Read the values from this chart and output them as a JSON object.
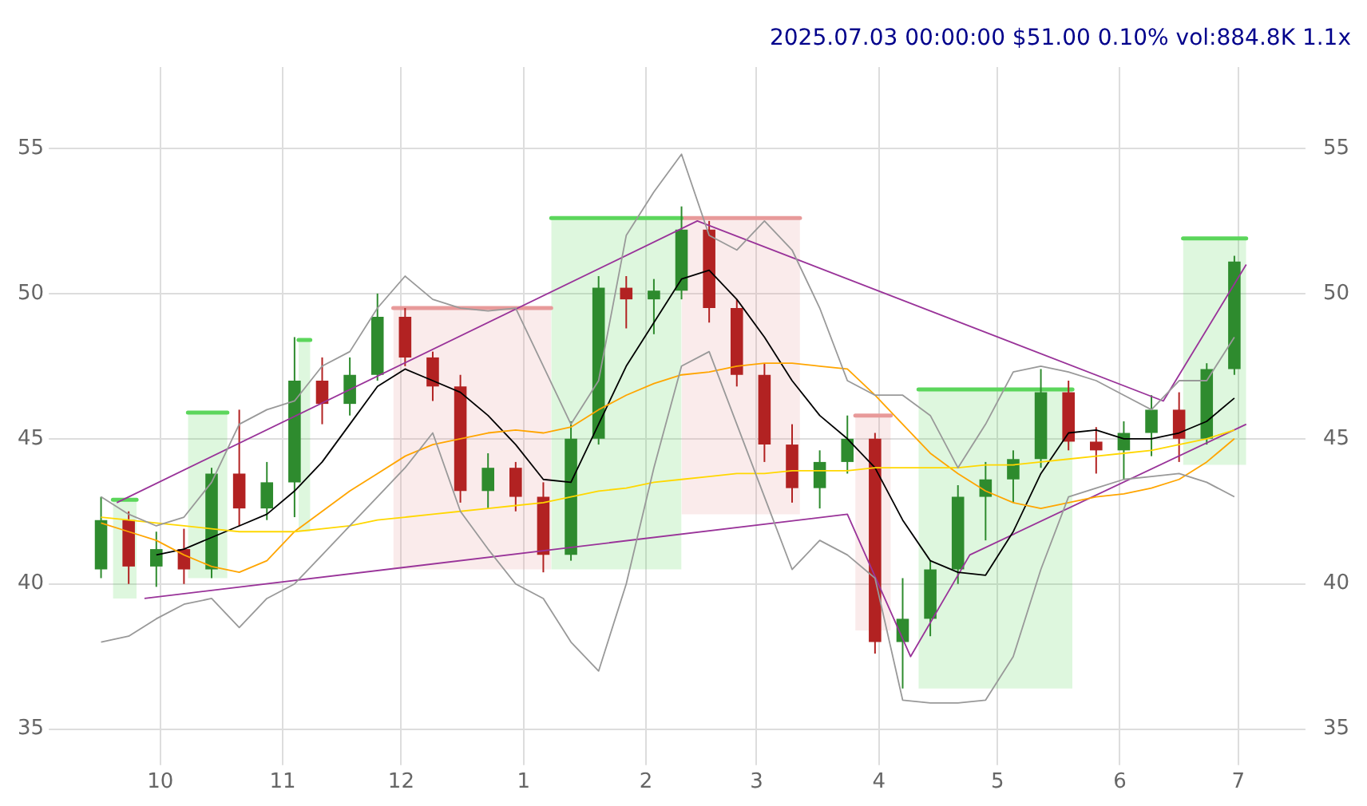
{
  "chart_data": {
    "type": "candlestick",
    "title": "2025.07.03 00:00:00 $51.00 0.10% vol:884.8K 1.1x",
    "x": [
      "2024-09-16",
      "2024-09-23",
      "2024-09-30",
      "2024-10-07",
      "2024-10-14",
      "2024-10-21",
      "2024-10-28",
      "2024-11-04",
      "2024-11-11",
      "2024-11-18",
      "2024-11-25",
      "2024-12-02",
      "2024-12-09",
      "2024-12-16",
      "2024-12-23",
      "2024-12-30",
      "2025-01-06",
      "2025-01-13",
      "2025-01-20",
      "2025-01-27",
      "2025-02-03",
      "2025-02-10",
      "2025-02-17",
      "2025-02-24",
      "2025-03-03",
      "2025-03-10",
      "2025-03-17",
      "2025-03-24",
      "2025-03-31",
      "2025-04-07",
      "2025-04-14",
      "2025-04-21",
      "2025-04-28",
      "2025-05-05",
      "2025-05-12",
      "2025-05-19",
      "2025-05-26",
      "2025-06-02",
      "2025-06-09",
      "2025-06-16",
      "2025-06-23",
      "2025-06-30"
    ],
    "ohlc": [
      [
        40.5,
        43.0,
        40.2,
        42.2
      ],
      [
        42.2,
        42.5,
        40.0,
        40.6
      ],
      [
        40.6,
        41.8,
        39.9,
        41.2
      ],
      [
        41.2,
        41.9,
        40.0,
        40.5
      ],
      [
        40.5,
        44.0,
        40.2,
        43.8
      ],
      [
        43.8,
        46.0,
        42.0,
        42.6
      ],
      [
        42.6,
        44.2,
        42.2,
        43.5
      ],
      [
        43.5,
        48.5,
        42.3,
        47.0
      ],
      [
        47.0,
        47.8,
        45.5,
        46.2
      ],
      [
        46.2,
        47.8,
        45.8,
        47.2
      ],
      [
        47.2,
        50.0,
        47.0,
        49.2
      ],
      [
        49.2,
        49.5,
        47.5,
        47.8
      ],
      [
        47.8,
        48.0,
        46.3,
        46.8
      ],
      [
        46.8,
        47.2,
        42.8,
        43.2
      ],
      [
        43.2,
        44.5,
        42.6,
        44.0
      ],
      [
        44.0,
        44.2,
        42.5,
        43.0
      ],
      [
        43.0,
        43.5,
        40.4,
        41.0
      ],
      [
        41.0,
        45.6,
        40.8,
        45.0
      ],
      [
        45.0,
        50.6,
        44.8,
        50.2
      ],
      [
        50.2,
        50.6,
        48.8,
        49.8
      ],
      [
        49.8,
        50.5,
        48.6,
        50.1
      ],
      [
        50.1,
        53.0,
        49.8,
        52.2
      ],
      [
        52.2,
        52.5,
        49.0,
        49.5
      ],
      [
        49.5,
        49.8,
        46.8,
        47.2
      ],
      [
        47.2,
        47.6,
        44.2,
        44.8
      ],
      [
        44.8,
        45.5,
        42.8,
        43.3
      ],
      [
        43.3,
        44.6,
        42.6,
        44.2
      ],
      [
        44.2,
        45.8,
        43.8,
        45.0
      ],
      [
        45.0,
        45.2,
        37.6,
        38.0
      ],
      [
        38.0,
        40.2,
        36.4,
        38.8
      ],
      [
        38.8,
        40.8,
        38.2,
        40.5
      ],
      [
        40.5,
        43.4,
        40.0,
        43.0
      ],
      [
        43.0,
        44.2,
        41.5,
        43.6
      ],
      [
        43.6,
        44.6,
        42.8,
        44.3
      ],
      [
        44.3,
        47.4,
        44.0,
        46.6
      ],
      [
        46.6,
        47.0,
        44.6,
        44.9
      ],
      [
        44.9,
        45.4,
        43.8,
        44.6
      ],
      [
        44.6,
        45.6,
        43.6,
        45.2
      ],
      [
        45.2,
        46.5,
        44.4,
        46.0
      ],
      [
        46.0,
        46.6,
        44.2,
        45.0
      ],
      [
        45.0,
        47.6,
        44.8,
        47.4
      ],
      [
        47.4,
        51.3,
        47.2,
        51.1
      ]
    ],
    "colors": [
      "#2e8b2e",
      "#b22222",
      "#2e8b2e",
      "#b22222",
      "#2e8b2e",
      "#b22222",
      "#2e8b2e",
      "#2e8b2e",
      "#b22222",
      "#2e8b2e",
      "#2e8b2e",
      "#b22222",
      "#b22222",
      "#b22222",
      "#2e8b2e",
      "#b22222",
      "#b22222",
      "#2e8b2e",
      "#2e8b2e",
      "#b22222",
      "#2e8b2e",
      "#2e8b2e",
      "#b22222",
      "#b22222",
      "#b22222",
      "#b22222",
      "#2e8b2e",
      "#2e8b2e",
      "#b22222",
      "#2e8b2e",
      "#2e8b2e",
      "#2e8b2e",
      "#2e8b2e",
      "#2e8b2e",
      "#2e8b2e",
      "#b22222",
      "#b22222",
      "#2e8b2e",
      "#2e8b2e",
      "#b22222",
      "#2e8b2e",
      "#2e8b2e"
    ],
    "series": [
      {
        "type": "line",
        "color": "#5cd65c",
        "x": [
          "2024-09-19",
          "2024-09-25"
        ],
        "values": [
          42.9,
          42.9
        ],
        "lower": [
          39.5,
          39.5
        ],
        "upper": [
          42.9,
          42.9
        ]
      },
      {
        "type": "line",
        "color": "#5cd65c",
        "x": [
          "2024-10-08",
          "2024-10-18"
        ],
        "values": [
          45.9,
          45.9
        ],
        "lower": [
          40.2,
          40.2
        ],
        "upper": [
          45.9,
          45.9
        ]
      },
      {
        "type": "line",
        "color": "#5cd65c",
        "x": [
          "2024-11-05",
          "2024-11-08"
        ],
        "values": [
          48.4,
          48.4
        ],
        "lower": [
          41.8,
          41.8
        ],
        "upper": [
          48.4,
          48.4
        ]
      },
      {
        "type": "line",
        "color": "#e89a9a",
        "x": [
          "2024-11-29",
          "2025-01-08"
        ],
        "values": [
          49.5,
          49.5
        ],
        "lower": [
          40.5,
          40.5
        ],
        "upper": [
          49.5,
          49.5
        ]
      },
      {
        "type": "line",
        "color": "#5cd65c",
        "x": [
          "2025-01-08",
          "2025-02-10"
        ],
        "values": [
          52.6,
          52.6
        ],
        "lower": [
          40.5,
          40.5
        ],
        "upper": [
          52.6,
          52.6
        ]
      },
      {
        "type": "line",
        "color": "#e89a9a",
        "x": [
          "2025-02-10",
          "2025-03-12"
        ],
        "values": [
          52.6,
          52.6
        ],
        "lower": [
          42.4,
          42.4
        ],
        "upper": [
          52.6,
          52.6
        ]
      },
      {
        "type": "line",
        "color": "#e89a9a",
        "x": [
          "2025-03-26",
          "2025-04-04"
        ],
        "values": [
          45.8,
          45.8
        ],
        "lower": [
          38.4,
          38.4
        ],
        "upper": [
          45.8,
          45.8
        ]
      },
      {
        "type": "line",
        "color": "#5cd65c",
        "x": [
          "2025-04-11",
          "2025-05-20"
        ],
        "values": [
          46.7,
          46.7
        ],
        "lower": [
          36.4,
          36.4
        ],
        "upper": [
          46.7,
          46.7
        ]
      },
      {
        "type": "line",
        "color": "#5cd65c",
        "x": [
          "2025-06-17",
          "2025-07-03"
        ],
        "values": [
          51.9,
          51.9
        ],
        "lower": [
          44.1,
          44.1
        ],
        "upper": [
          51.9,
          51.9
        ]
      },
      {
        "type": "line",
        "color": "#999999",
        "values": [
          43.0,
          42.4,
          42.0,
          42.3,
          43.5,
          45.5,
          46.0,
          46.3,
          47.5,
          48.0,
          49.5,
          50.6,
          49.8,
          49.5,
          49.4,
          49.5,
          47.5,
          45.5,
          47.0,
          52.0,
          53.5,
          54.8,
          52.0,
          51.5,
          52.5,
          51.5,
          49.5,
          47.0,
          46.5,
          46.5,
          45.8,
          44.0,
          45.5,
          47.3,
          47.5,
          47.3,
          47.0,
          46.5,
          46.0,
          47.0,
          47.0,
          48.5
        ]
      },
      {
        "type": "line",
        "color": "#999999",
        "values": [
          38.0,
          38.2,
          38.8,
          39.3,
          39.5,
          38.5,
          39.5,
          40.0,
          41.0,
          42.0,
          43.0,
          44.0,
          45.2,
          42.5,
          41.2,
          40.0,
          39.5,
          38.0,
          37.0,
          40.0,
          44.0,
          47.5,
          48.0,
          45.5,
          43.0,
          40.5,
          41.5,
          41.0,
          40.2,
          36.0,
          35.9,
          35.9,
          36.0,
          37.5,
          40.5,
          43.0,
          43.3,
          43.6,
          43.7,
          43.8,
          43.5,
          43.0
        ]
      },
      {
        "type": "line",
        "color": "#ffd700",
        "values": [
          42.3,
          42.2,
          42.1,
          42.0,
          41.9,
          41.8,
          41.8,
          41.8,
          41.9,
          42.0,
          42.2,
          42.3,
          42.4,
          42.5,
          42.6,
          42.7,
          42.8,
          43.0,
          43.2,
          43.3,
          43.5,
          43.6,
          43.7,
          43.8,
          43.8,
          43.9,
          43.9,
          43.9,
          44.0,
          44.0,
          44.0,
          44.0,
          44.1,
          44.1,
          44.2,
          44.3,
          44.4,
          44.5,
          44.6,
          44.8,
          45.0,
          45.3
        ]
      },
      {
        "type": "line",
        "color": "#ffa500",
        "values": [
          42.1,
          41.8,
          41.5,
          41.0,
          40.6,
          40.4,
          40.8,
          41.8,
          42.5,
          43.2,
          43.8,
          44.4,
          44.8,
          45.0,
          45.2,
          45.3,
          45.2,
          45.4,
          46.0,
          46.5,
          46.9,
          47.2,
          47.3,
          47.5,
          47.6,
          47.6,
          47.5,
          47.4,
          46.5,
          45.5,
          44.5,
          43.8,
          43.2,
          42.8,
          42.6,
          42.8,
          43.0,
          43.1,
          43.3,
          43.6,
          44.2,
          45.0
        ]
      },
      {
        "type": "line",
        "color": "#000000",
        "values": [
          null,
          null,
          41.0,
          41.2,
          41.6,
          42.0,
          42.4,
          43.2,
          44.2,
          45.5,
          46.8,
          47.4,
          47.0,
          46.6,
          45.8,
          44.8,
          43.6,
          43.5,
          45.5,
          47.5,
          49.0,
          50.5,
          50.8,
          49.8,
          48.5,
          47.0,
          45.8,
          45.0,
          44.0,
          42.2,
          40.8,
          40.4,
          40.3,
          41.8,
          43.8,
          45.2,
          45.3,
          45.0,
          45.0,
          45.2,
          45.6,
          46.4
        ]
      },
      {
        "type": "line",
        "color": "#993399",
        "x": [
          "2024-09-20",
          "2025-02-14",
          "2025-06-12",
          "2025-07-03"
        ],
        "values": [
          42.8,
          52.5,
          46.3,
          51.0
        ]
      },
      {
        "type": "line",
        "color": "#993399",
        "x": [
          "2024-09-27",
          "2025-03-24",
          "2025-04-09",
          "2025-04-24",
          "2025-07-03"
        ],
        "values": [
          39.5,
          42.4,
          37.5,
          41.0,
          45.5
        ]
      }
    ],
    "xlim": [
      "2024-09-06",
      "2025-07-18"
    ],
    "xticks": [
      {
        "value": "2024-10-01",
        "label": "10"
      },
      {
        "value": "2024-11-01",
        "label": "11"
      },
      {
        "value": "2024-12-01",
        "label": "12"
      },
      {
        "value": "2025-01-01",
        "label": "1"
      },
      {
        "value": "2025-02-01",
        "label": "2"
      },
      {
        "value": "2025-03-01",
        "label": "3"
      },
      {
        "value": "2025-04-01",
        "label": "4"
      },
      {
        "value": "2025-05-01",
        "label": "5"
      },
      {
        "value": "2025-06-01",
        "label": "6"
      },
      {
        "value": "2025-07-01",
        "label": "7"
      }
    ],
    "ylim": [
      34.2,
      57.8
    ],
    "yticks": [
      35,
      40,
      45,
      50,
      55
    ],
    "y2lim": [
      34.2,
      57.8
    ],
    "y2ticks": [
      35,
      40,
      45,
      50,
      55
    ],
    "grid": true,
    "legend": false,
    "marker": "none",
    "line_style": "solid"
  }
}
